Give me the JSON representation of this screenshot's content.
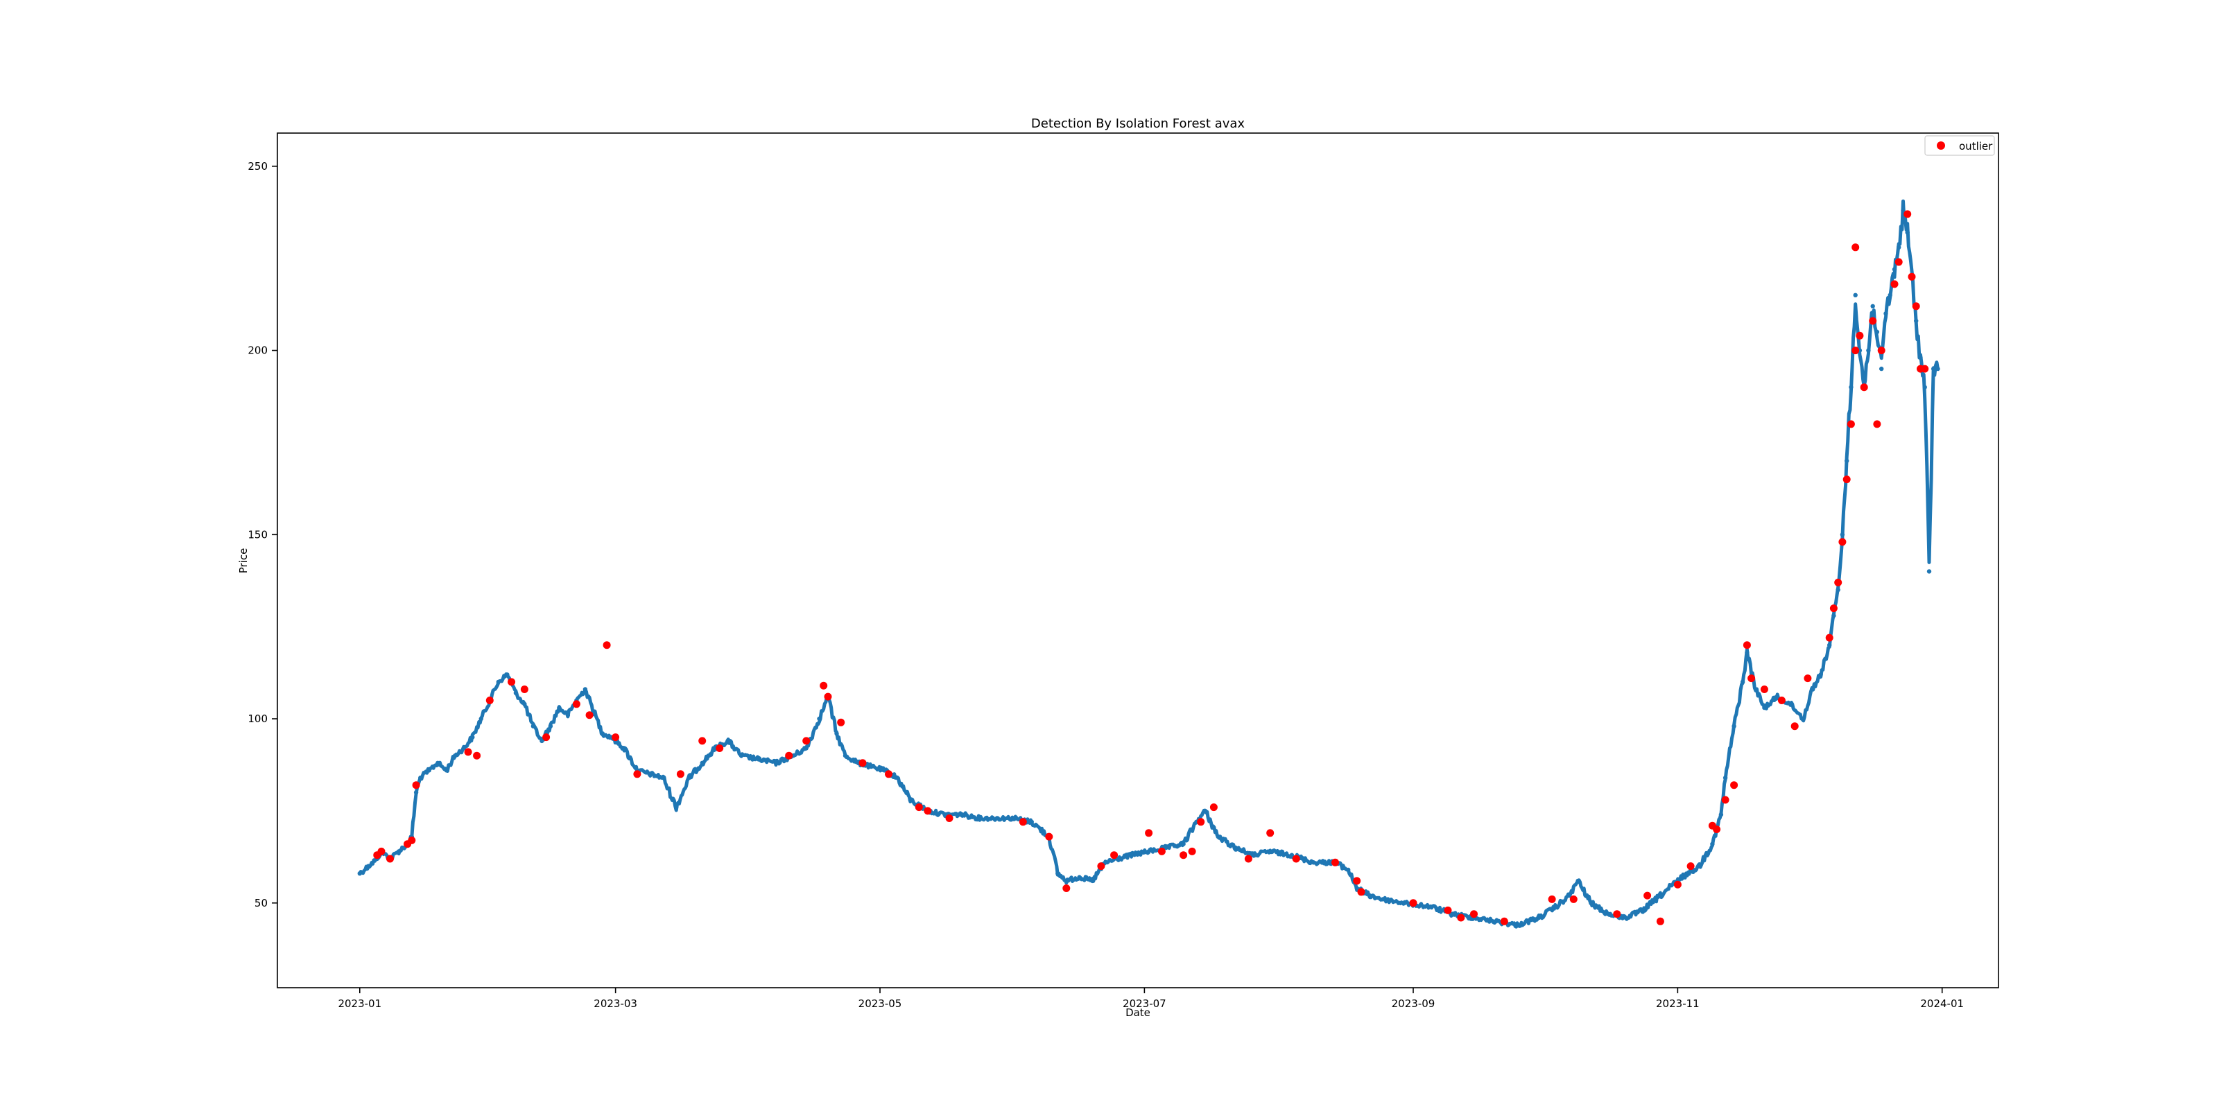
{
  "chart_data": {
    "type": "scatter",
    "title": "Detection By Isolation Forest avax",
    "xlabel": "Date",
    "ylabel": "Price",
    "x_tick_labels": [
      "2023-01",
      "2023-03",
      "2023-05",
      "2023-07",
      "2023-09",
      "2023-11",
      "2024-01"
    ],
    "x_ticks": [
      "2023-01-01",
      "2023-03-01",
      "2023-05-01",
      "2023-07-01",
      "2023-09-01",
      "2023-11-01",
      "2024-01-01"
    ],
    "y_tick_labels": [
      "50",
      "100",
      "150",
      "200",
      "250"
    ],
    "y_ticks": [
      50,
      100,
      150,
      200,
      250
    ],
    "xlim": [
      "2022-12-13",
      "2024-01-14"
    ],
    "ylim": [
      27,
      259
    ],
    "grid": false,
    "legend_position": "top-right",
    "series": [
      {
        "name": "",
        "color": "#1f77b4",
        "marker": "line-with-dots",
        "points": [
          [
            "2023-01-01",
            58
          ],
          [
            "2023-01-03",
            60
          ],
          [
            "2023-01-05",
            62
          ],
          [
            "2023-01-06",
            64
          ],
          [
            "2023-01-08",
            62
          ],
          [
            "2023-01-10",
            64
          ],
          [
            "2023-01-12",
            66
          ],
          [
            "2023-01-13",
            68
          ],
          [
            "2023-01-14",
            80
          ],
          [
            "2023-01-15",
            84
          ],
          [
            "2023-01-17",
            86
          ],
          [
            "2023-01-19",
            88
          ],
          [
            "2023-01-21",
            86
          ],
          [
            "2023-01-23",
            90
          ],
          [
            "2023-01-25",
            92
          ],
          [
            "2023-01-27",
            95
          ],
          [
            "2023-01-29",
            100
          ],
          [
            "2023-01-31",
            105
          ],
          [
            "2023-02-02",
            110
          ],
          [
            "2023-02-04",
            112
          ],
          [
            "2023-02-06",
            107
          ],
          [
            "2023-02-08",
            104
          ],
          [
            "2023-02-10",
            98
          ],
          [
            "2023-02-12",
            94
          ],
          [
            "2023-02-14",
            98
          ],
          [
            "2023-02-16",
            103
          ],
          [
            "2023-02-18",
            101
          ],
          [
            "2023-02-20",
            105
          ],
          [
            "2023-02-22",
            108
          ],
          [
            "2023-02-24",
            102
          ],
          [
            "2023-02-26",
            96
          ],
          [
            "2023-02-28",
            95
          ],
          [
            "2023-03-03",
            92
          ],
          [
            "2023-03-06",
            86
          ],
          [
            "2023-03-09",
            85
          ],
          [
            "2023-03-12",
            84
          ],
          [
            "2023-03-15",
            76
          ],
          [
            "2023-03-18",
            84
          ],
          [
            "2023-03-21",
            88
          ],
          [
            "2023-03-24",
            92
          ],
          [
            "2023-03-27",
            94
          ],
          [
            "2023-03-30",
            90
          ],
          [
            "2023-04-03",
            89
          ],
          [
            "2023-04-07",
            88
          ],
          [
            "2023-04-11",
            90
          ],
          [
            "2023-04-14",
            92
          ],
          [
            "2023-04-17",
            100
          ],
          [
            "2023-04-19",
            106
          ],
          [
            "2023-04-21",
            96
          ],
          [
            "2023-04-23",
            90
          ],
          [
            "2023-04-26",
            88
          ],
          [
            "2023-04-29",
            87
          ],
          [
            "2023-05-02",
            86
          ],
          [
            "2023-05-05",
            84
          ],
          [
            "2023-05-08",
            78
          ],
          [
            "2023-05-12",
            75
          ],
          [
            "2023-05-16",
            74
          ],
          [
            "2023-05-20",
            74
          ],
          [
            "2023-05-24",
            73
          ],
          [
            "2023-05-28",
            73
          ],
          [
            "2023-06-01",
            73
          ],
          [
            "2023-06-05",
            72
          ],
          [
            "2023-06-09",
            68
          ],
          [
            "2023-06-11",
            58
          ],
          [
            "2023-06-13",
            56
          ],
          [
            "2023-06-16",
            57
          ],
          [
            "2023-06-19",
            56
          ],
          [
            "2023-06-22",
            61
          ],
          [
            "2023-06-25",
            62
          ],
          [
            "2023-06-28",
            63
          ],
          [
            "2023-07-02",
            64
          ],
          [
            "2023-07-06",
            65
          ],
          [
            "2023-07-10",
            66
          ],
          [
            "2023-07-13",
            72
          ],
          [
            "2023-07-15",
            75
          ],
          [
            "2023-07-18",
            68
          ],
          [
            "2023-07-22",
            65
          ],
          [
            "2023-07-26",
            63
          ],
          [
            "2023-07-30",
            64
          ],
          [
            "2023-08-04",
            63
          ],
          [
            "2023-08-09",
            61
          ],
          [
            "2023-08-14",
            61
          ],
          [
            "2023-08-17",
            59
          ],
          [
            "2023-08-19",
            54
          ],
          [
            "2023-08-22",
            52
          ],
          [
            "2023-08-25",
            51
          ],
          [
            "2023-08-30",
            50
          ],
          [
            "2023-09-05",
            49
          ],
          [
            "2023-09-10",
            47
          ],
          [
            "2023-09-15",
            46
          ],
          [
            "2023-09-20",
            45
          ],
          [
            "2023-09-25",
            44
          ],
          [
            "2023-09-30",
            46
          ],
          [
            "2023-10-04",
            49
          ],
          [
            "2023-10-07",
            52
          ],
          [
            "2023-10-09",
            56
          ],
          [
            "2023-10-12",
            50
          ],
          [
            "2023-10-16",
            47
          ],
          [
            "2023-10-20",
            46
          ],
          [
            "2023-10-24",
            48
          ],
          [
            "2023-10-28",
            52
          ],
          [
            "2023-11-02",
            57
          ],
          [
            "2023-11-06",
            60
          ],
          [
            "2023-11-09",
            66
          ],
          [
            "2023-11-11",
            74
          ],
          [
            "2023-11-12",
            84
          ],
          [
            "2023-11-14",
            98
          ],
          [
            "2023-11-16",
            110
          ],
          [
            "2023-11-17",
            118
          ],
          [
            "2023-11-19",
            108
          ],
          [
            "2023-11-21",
            103
          ],
          [
            "2023-11-24",
            106
          ],
          [
            "2023-11-27",
            104
          ],
          [
            "2023-11-30",
            100
          ],
          [
            "2023-12-02",
            108
          ],
          [
            "2023-12-04",
            112
          ],
          [
            "2023-12-06",
            120
          ],
          [
            "2023-12-07",
            128
          ],
          [
            "2023-12-08",
            135
          ],
          [
            "2023-12-09",
            150
          ],
          [
            "2023-12-10",
            170
          ],
          [
            "2023-12-11",
            190
          ],
          [
            "2023-12-12",
            215
          ],
          [
            "2023-12-13",
            200
          ],
          [
            "2023-12-14",
            190
          ],
          [
            "2023-12-15",
            200
          ],
          [
            "2023-12-16",
            212
          ],
          [
            "2023-12-17",
            205
          ],
          [
            "2023-12-18",
            195
          ],
          [
            "2023-12-19",
            210
          ],
          [
            "2023-12-20",
            215
          ],
          [
            "2023-12-21",
            222
          ],
          [
            "2023-12-22",
            228
          ],
          [
            "2023-12-23",
            238
          ],
          [
            "2023-12-24",
            232
          ],
          [
            "2023-12-25",
            220
          ],
          [
            "2023-12-26",
            208
          ],
          [
            "2023-12-27",
            198
          ],
          [
            "2023-12-28",
            190
          ],
          [
            "2023-12-29",
            140
          ],
          [
            "2023-12-30",
            195
          ],
          [
            "2023-12-31",
            195
          ]
        ]
      },
      {
        "name": "outlier",
        "color": "#ff0000",
        "marker": "dot",
        "points": [
          [
            "2023-01-05",
            63
          ],
          [
            "2023-01-06",
            64
          ],
          [
            "2023-01-08",
            62
          ],
          [
            "2023-01-12",
            66
          ],
          [
            "2023-01-13",
            67
          ],
          [
            "2023-01-14",
            82
          ],
          [
            "2023-01-26",
            91
          ],
          [
            "2023-01-28",
            90
          ],
          [
            "2023-01-31",
            105
          ],
          [
            "2023-02-05",
            110
          ],
          [
            "2023-02-08",
            108
          ],
          [
            "2023-02-13",
            95
          ],
          [
            "2023-02-20",
            104
          ],
          [
            "2023-02-23",
            101
          ],
          [
            "2023-02-27",
            120
          ],
          [
            "2023-03-01",
            95
          ],
          [
            "2023-03-06",
            85
          ],
          [
            "2023-03-16",
            85
          ],
          [
            "2023-03-21",
            94
          ],
          [
            "2023-03-25",
            92
          ],
          [
            "2023-04-10",
            90
          ],
          [
            "2023-04-14",
            94
          ],
          [
            "2023-04-18",
            109
          ],
          [
            "2023-04-19",
            106
          ],
          [
            "2023-04-22",
            99
          ],
          [
            "2023-04-27",
            88
          ],
          [
            "2023-05-03",
            85
          ],
          [
            "2023-05-10",
            76
          ],
          [
            "2023-05-12",
            75
          ],
          [
            "2023-05-17",
            73
          ],
          [
            "2023-06-03",
            72
          ],
          [
            "2023-06-09",
            68
          ],
          [
            "2023-06-13",
            54
          ],
          [
            "2023-06-21",
            60
          ],
          [
            "2023-06-24",
            63
          ],
          [
            "2023-07-02",
            69
          ],
          [
            "2023-07-05",
            64
          ],
          [
            "2023-07-10",
            63
          ],
          [
            "2023-07-12",
            64
          ],
          [
            "2023-07-14",
            72
          ],
          [
            "2023-07-17",
            76
          ],
          [
            "2023-07-25",
            62
          ],
          [
            "2023-07-30",
            69
          ],
          [
            "2023-08-05",
            62
          ],
          [
            "2023-08-14",
            61
          ],
          [
            "2023-08-19",
            56
          ],
          [
            "2023-08-20",
            53
          ],
          [
            "2023-09-01",
            50
          ],
          [
            "2023-09-09",
            48
          ],
          [
            "2023-09-12",
            46
          ],
          [
            "2023-09-15",
            47
          ],
          [
            "2023-09-22",
            45
          ],
          [
            "2023-10-03",
            51
          ],
          [
            "2023-10-08",
            51
          ],
          [
            "2023-10-18",
            47
          ],
          [
            "2023-10-25",
            52
          ],
          [
            "2023-10-28",
            45
          ],
          [
            "2023-11-01",
            55
          ],
          [
            "2023-11-04",
            60
          ],
          [
            "2023-11-09",
            71
          ],
          [
            "2023-11-10",
            70
          ],
          [
            "2023-11-12",
            78
          ],
          [
            "2023-11-14",
            82
          ],
          [
            "2023-11-17",
            120
          ],
          [
            "2023-11-18",
            111
          ],
          [
            "2023-11-21",
            108
          ],
          [
            "2023-11-25",
            105
          ],
          [
            "2023-11-28",
            98
          ],
          [
            "2023-12-01",
            111
          ],
          [
            "2023-12-06",
            122
          ],
          [
            "2023-12-07",
            130
          ],
          [
            "2023-12-08",
            137
          ],
          [
            "2023-12-09",
            148
          ],
          [
            "2023-12-10",
            165
          ],
          [
            "2023-12-11",
            180
          ],
          [
            "2023-12-12",
            228
          ],
          [
            "2023-12-12",
            200
          ],
          [
            "2023-12-13",
            204
          ],
          [
            "2023-12-14",
            190
          ],
          [
            "2023-12-16",
            208
          ],
          [
            "2023-12-17",
            180
          ],
          [
            "2023-12-18",
            200
          ],
          [
            "2023-12-21",
            218
          ],
          [
            "2023-12-22",
            224
          ],
          [
            "2023-12-24",
            237
          ],
          [
            "2023-12-25",
            220
          ],
          [
            "2023-12-26",
            212
          ],
          [
            "2023-12-27",
            195
          ],
          [
            "2023-12-28",
            195
          ]
        ]
      }
    ]
  }
}
